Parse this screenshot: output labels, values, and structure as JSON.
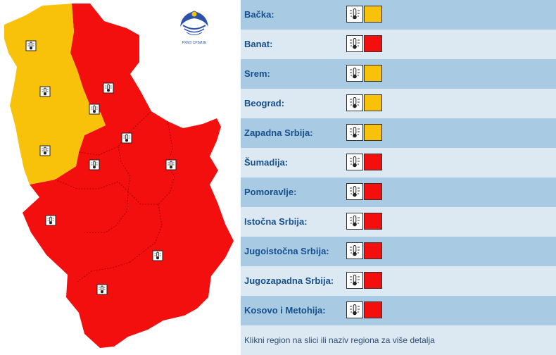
{
  "colors": {
    "yellow": "#f9c20a",
    "red": "#f40f0f",
    "row_dark": "#a8cbe3",
    "row_light": "#dde9f2",
    "label": "#16508e",
    "logo": "#2b52a8"
  },
  "logo": {
    "icon": "rhmz-logo-icon",
    "caption": "РХМЗ СРБИЈЕ"
  },
  "map": {
    "icon": "thermometer-icon"
  },
  "regions": [
    {
      "name": "Bačka:",
      "level": "yellow"
    },
    {
      "name": "Banat:",
      "level": "red"
    },
    {
      "name": "Srem:",
      "level": "yellow"
    },
    {
      "name": "Beograd:",
      "level": "yellow"
    },
    {
      "name": "Zapadna Srbija:",
      "level": "yellow"
    },
    {
      "name": "Šumadija:",
      "level": "red"
    },
    {
      "name": "Pomoravlje:",
      "level": "red"
    },
    {
      "name": "Istočna Srbija:",
      "level": "red"
    },
    {
      "name": "Jugoistočna Srbija:",
      "level": "red"
    },
    {
      "name": "Jugozapadna Srbija:",
      "level": "red"
    },
    {
      "name": "Kosovo i Metohija:",
      "level": "red"
    }
  ],
  "footer": "Klikni region na slici ili naziv regiona za više detalja"
}
